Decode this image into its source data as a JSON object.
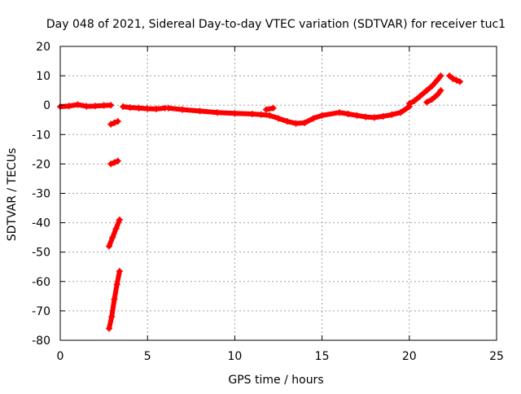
{
  "chart_data": {
    "type": "scatter",
    "title": "Day 048 of 2021, Sidereal Day-to-day VTEC variation (SDTVAR) for receiver tuc1",
    "xlabel": "GPS time / hours",
    "ylabel": "SDTVAR / TECUs",
    "xlim": [
      0,
      25
    ],
    "ylim": [
      -80,
      20
    ],
    "xticks": [
      0,
      5,
      10,
      15,
      20,
      25
    ],
    "yticks": [
      20,
      10,
      0,
      -10,
      -20,
      -30,
      -40,
      -50,
      -60,
      -70,
      -80
    ],
    "grid": true,
    "series": [
      {
        "name": "SDTVAR",
        "color": "#ff0000",
        "marker": "plus",
        "segments": [
          {
            "x": [
              0.0,
              0.5,
              1.0,
              1.5,
              2.0,
              2.5,
              2.9
            ],
            "y": [
              -0.5,
              -0.3,
              0.2,
              -0.4,
              -0.3,
              -0.1,
              0.0
            ]
          },
          {
            "x": [
              2.9,
              3.1,
              3.3
            ],
            "y": [
              -6.5,
              -6.0,
              -5.5
            ]
          },
          {
            "x": [
              2.9,
              3.1,
              3.3
            ],
            "y": [
              -20.0,
              -19.5,
              -19.0
            ]
          },
          {
            "x": [
              2.8,
              3.0,
              3.2,
              3.4
            ],
            "y": [
              -48.0,
              -45.0,
              -42.0,
              -39.0
            ]
          },
          {
            "x": [
              2.8,
              2.95,
              3.1,
              3.25,
              3.4
            ],
            "y": [
              -76.0,
              -72.0,
              -66.0,
              -61.0,
              -56.5
            ]
          },
          {
            "x": [
              3.6,
              4.0,
              4.5,
              5.0,
              5.5,
              6.0
            ],
            "y": [
              -0.5,
              -0.8,
              -1.0,
              -1.2,
              -1.3,
              -1.0
            ]
          },
          {
            "x": [
              6.2,
              7.0,
              8.0,
              9.0,
              10.0,
              11.0,
              11.5,
              12.0,
              12.5,
              13.0,
              13.5,
              14.0,
              14.5,
              15.0,
              16.0,
              16.5,
              17.0,
              17.5,
              18.0,
              18.5,
              19.0,
              19.5,
              20.0
            ],
            "y": [
              -1.0,
              -1.5,
              -2.0,
              -2.5,
              -2.8,
              -3.0,
              -3.2,
              -3.5,
              -4.5,
              -5.5,
              -6.2,
              -6.0,
              -4.5,
              -3.5,
              -2.5,
              -3.0,
              -3.5,
              -4.0,
              -4.2,
              -3.8,
              -3.2,
              -2.5,
              -0.5
            ]
          },
          {
            "x": [
              11.8,
              12.2
            ],
            "y": [
              -1.5,
              -1.0
            ]
          },
          {
            "x": [
              20.0,
              20.3,
              20.6,
              21.0,
              21.3,
              21.6,
              21.8
            ],
            "y": [
              0.5,
              1.5,
              3.0,
              5.0,
              6.5,
              8.5,
              10.0
            ]
          },
          {
            "x": [
              21.0,
              21.3,
              21.6,
              21.8
            ],
            "y": [
              1.0,
              2.0,
              3.5,
              5.0
            ]
          },
          {
            "x": [
              22.3,
              22.5,
              22.7,
              22.9
            ],
            "y": [
              10.0,
              9.0,
              8.5,
              8.0
            ]
          }
        ]
      }
    ]
  }
}
